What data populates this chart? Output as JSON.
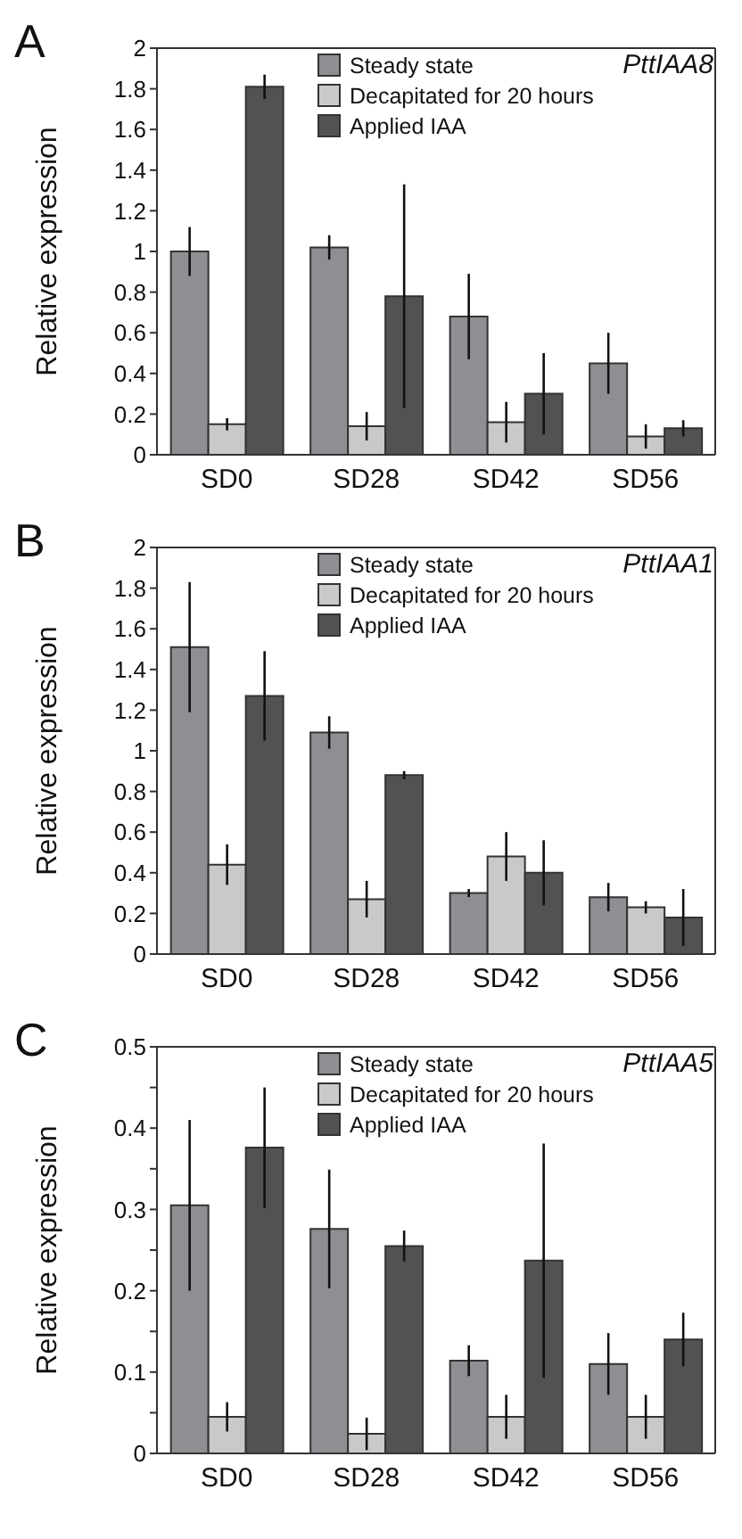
{
  "chart_data": [
    {
      "type": "bar",
      "title": "A",
      "annotations": [
        "PttIAA8"
      ],
      "ylabel": "Relative expression",
      "categories": [
        "SD0",
        "SD28",
        "SD42",
        "SD56"
      ],
      "ylim": [
        0,
        2
      ],
      "yticks": [
        0,
        0.2,
        0.4,
        0.6,
        0.8,
        1,
        1.2,
        1.4,
        1.6,
        1.8,
        2
      ],
      "grid": false,
      "legend": "top",
      "series": [
        {
          "name": "Steady state",
          "color": "#8e8f93",
          "values": [
            1.0,
            1.02,
            0.68,
            0.45
          ],
          "errors": [
            0.12,
            0.06,
            0.21,
            0.15
          ]
        },
        {
          "name": "Decapitated for 20 hours",
          "color": "#c8c9cb",
          "values": [
            0.15,
            0.14,
            0.16,
            0.09
          ],
          "errors": [
            0.03,
            0.07,
            0.1,
            0.06
          ]
        },
        {
          "name": "Applied IAA",
          "color": "#515254",
          "values": [
            1.81,
            0.78,
            0.3,
            0.13
          ],
          "errors": [
            0.06,
            0.55,
            0.2,
            0.04
          ]
        }
      ]
    },
    {
      "type": "bar",
      "title": "B",
      "annotations": [
        "PttIAA1"
      ],
      "ylabel": "Relative expression",
      "categories": [
        "SD0",
        "SD28",
        "SD42",
        "SD56"
      ],
      "ylim": [
        0,
        2
      ],
      "yticks": [
        0,
        0.2,
        0.4,
        0.6,
        0.8,
        1,
        1.2,
        1.4,
        1.6,
        1.8,
        2
      ],
      "grid": false,
      "legend": "top",
      "series": [
        {
          "name": "Steady state",
          "color": "#8e8f93",
          "values": [
            1.51,
            1.09,
            0.3,
            0.28
          ],
          "errors": [
            0.32,
            0.08,
            0.02,
            0.07
          ]
        },
        {
          "name": "Decapitated for 20 hours",
          "color": "#c8c9cb",
          "values": [
            0.44,
            0.27,
            0.48,
            0.23
          ],
          "errors": [
            0.1,
            0.09,
            0.12,
            0.03
          ]
        },
        {
          "name": "Applied IAA",
          "color": "#515254",
          "values": [
            1.27,
            0.88,
            0.4,
            0.18
          ],
          "errors": [
            0.22,
            0.02,
            0.16,
            0.14
          ]
        }
      ]
    },
    {
      "type": "bar",
      "title": "C",
      "annotations": [
        "PttIAA5"
      ],
      "ylabel": "Relative expression",
      "categories": [
        "SD0",
        "SD28",
        "SD42",
        "SD56"
      ],
      "ylim": [
        0,
        0.5
      ],
      "yticks": [
        0,
        {
          "value": 0.05,
          "label": null
        },
        0.1,
        {
          "value": 0.15,
          "label": null
        },
        0.2,
        {
          "value": 0.25,
          "label": null
        },
        0.3,
        {
          "value": 0.35,
          "label": null
        },
        0.4,
        {
          "value": 0.45,
          "label": null
        },
        0.5
      ],
      "grid": false,
      "legend": "top",
      "series": [
        {
          "name": "Steady state",
          "color": "#8e8f93",
          "values": [
            0.305,
            0.276,
            0.114,
            0.11
          ],
          "errors": [
            0.105,
            0.073,
            0.019,
            0.038
          ]
        },
        {
          "name": "Decapitated for 20 hours",
          "color": "#c8c9cb",
          "values": [
            0.045,
            0.024,
            0.045,
            0.045
          ],
          "errors": [
            0.018,
            0.02,
            0.027,
            0.027
          ]
        },
        {
          "name": "Applied IAA",
          "color": "#515254",
          "values": [
            0.376,
            0.255,
            0.237,
            0.14
          ],
          "errors": [
            0.074,
            0.019,
            0.144,
            0.033
          ]
        }
      ]
    }
  ]
}
